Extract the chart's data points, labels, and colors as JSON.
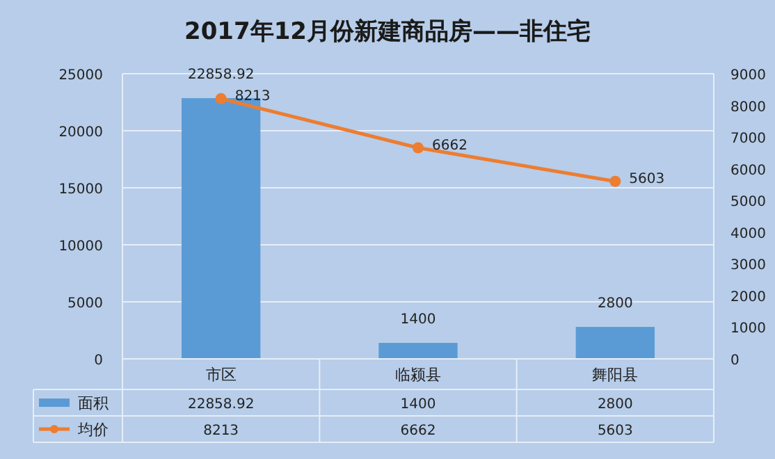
{
  "chart_data": {
    "type": "bar",
    "title": "2017年12月份新建商品房——非住宅",
    "categories": [
      "市区",
      "临颍县",
      "舞阳县"
    ],
    "series": [
      {
        "name": "面积",
        "color": "#5b9bd5",
        "values": [
          22858.92,
          1400,
          2800
        ],
        "value_labels": [
          "22858.92",
          "1400",
          "2800"
        ]
      },
      {
        "name": "均价",
        "type": "line",
        "axis": "y2",
        "color": "#ed7d31",
        "marker": "circle",
        "values": [
          8213,
          6662,
          5603
        ],
        "value_labels": [
          "8213",
          "6662",
          "5603"
        ]
      }
    ],
    "ylim": [
      0,
      25000
    ],
    "yticks": [
      0,
      5000,
      10000,
      15000,
      20000,
      25000
    ],
    "y2lim": [
      0,
      9000
    ],
    "y2ticks": [
      0,
      1000,
      2000,
      3000,
      4000,
      5000,
      6000,
      7000,
      8000,
      9000
    ],
    "grid": "y",
    "legend": "bottom",
    "data_labels": true
  }
}
